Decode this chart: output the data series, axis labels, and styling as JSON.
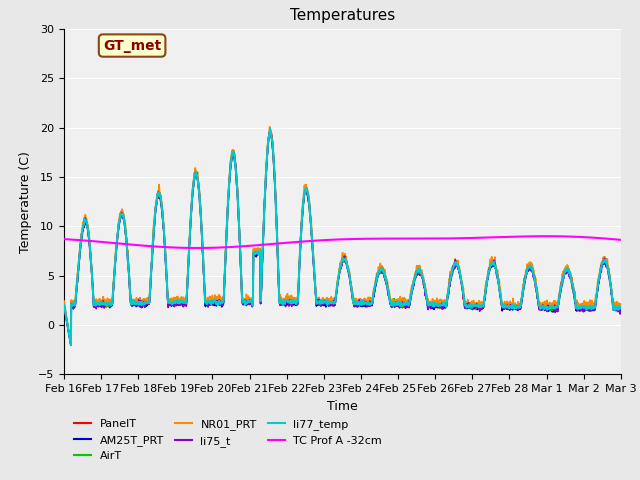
{
  "title": "Temperatures",
  "xlabel": "Time",
  "ylabel": "Temperature (C)",
  "ylim": [
    -5,
    30
  ],
  "x_ticks_labels": [
    "Feb 16",
    "Feb 17",
    "Feb 18",
    "Feb 19",
    "Feb 20",
    "Feb 21",
    "Feb 22",
    "Feb 23",
    "Feb 24",
    "Feb 25",
    "Feb 26",
    "Feb 27",
    "Feb 28",
    "Mar 1",
    "Mar 2",
    "Mar 3"
  ],
  "bg_color": "#e8e8e8",
  "plot_bg_color": "#f0f0f0",
  "annotation_box": {
    "text": "GT_met",
    "facecolor": "#ffffcc",
    "edgecolor": "#8b4513",
    "textcolor": "#8b0000",
    "fontsize": 10,
    "fontweight": "bold"
  },
  "series": [
    {
      "label": "PanelT",
      "color": "#ff0000",
      "lw": 1.2,
      "zorder": 3
    },
    {
      "label": "AM25T_PRT",
      "color": "#0000cc",
      "lw": 1.2,
      "zorder": 3
    },
    {
      "label": "AirT",
      "color": "#00cc00",
      "lw": 1.2,
      "zorder": 3
    },
    {
      "label": "NR01_PRT",
      "color": "#ff8800",
      "lw": 1.2,
      "zorder": 3
    },
    {
      "label": "li75_t",
      "color": "#8800cc",
      "lw": 1.2,
      "zorder": 3
    },
    {
      "label": "li77_temp",
      "color": "#00cccc",
      "lw": 1.5,
      "zorder": 4
    },
    {
      "label": "TC Prof A -32cm",
      "color": "#ff00ff",
      "lw": 1.5,
      "zorder": 5
    }
  ]
}
